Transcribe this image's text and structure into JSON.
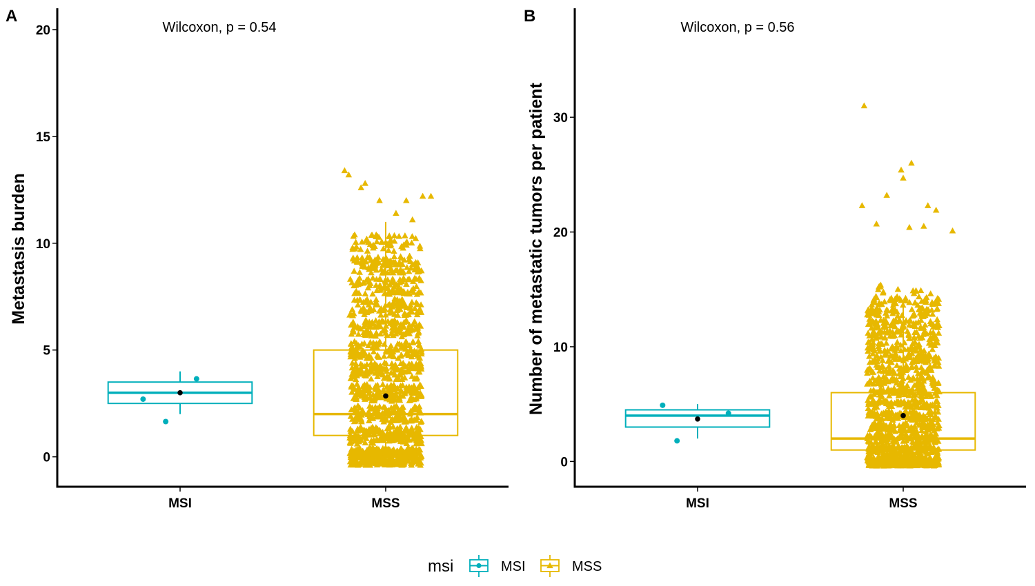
{
  "colors": {
    "MSI": "#00AFBB",
    "MSS": "#E7B800",
    "mean": "#000000",
    "axis": "#000000"
  },
  "legend": {
    "title": "msi",
    "items": [
      {
        "label": "MSI",
        "key": "MSI",
        "shape": "circle"
      },
      {
        "label": "MSS",
        "key": "MSS",
        "shape": "triangle"
      }
    ],
    "placement": "bottom"
  },
  "chart_data": [
    {
      "type": "box",
      "panel": "A",
      "title": "",
      "annotation": "Wilcoxon, p = 0.54",
      "xlabel": "",
      "ylabel": "Metastasis burden",
      "categories": [
        "MSI",
        "MSS"
      ],
      "ylim": [
        -1.4,
        21.0
      ],
      "yticks": [
        0,
        5,
        10,
        15,
        20
      ],
      "grid": false,
      "boxes": [
        {
          "group": "MSI",
          "q1": 2.5,
          "median": 3.0,
          "q3": 3.5,
          "whisker_low": 2.0,
          "whisker_high": 4.0,
          "mean": 3.0
        },
        {
          "group": "MSS",
          "q1": 1.0,
          "median": 2.0,
          "q3": 5.0,
          "whisker_low": 0.0,
          "whisker_high": 11.0,
          "mean": 2.85
        }
      ],
      "points": {
        "MSI": [
          [
            -0.18,
            2.7
          ],
          [
            0.08,
            3.65
          ],
          [
            -0.07,
            1.65
          ]
        ],
        "MSS": {
          "jitter": 0.35,
          "n": 1500,
          "y_min": -0.4,
          "y_max": 13.4,
          "notable": [
            [
              -0.2,
              13.4
            ],
            [
              -0.18,
              13.2
            ],
            [
              -0.12,
              12.6
            ],
            [
              -0.1,
              12.8
            ],
            [
              -0.03,
              12.0
            ],
            [
              0.1,
              12.0
            ],
            [
              0.18,
              12.2
            ],
            [
              0.22,
              12.2
            ],
            [
              0.13,
              11.1
            ],
            [
              0.05,
              11.4
            ]
          ]
        }
      }
    },
    {
      "type": "box",
      "panel": "B",
      "title": "",
      "annotation": "Wilcoxon, p = 0.56",
      "xlabel": "",
      "ylabel": "Number of metastatic tumors per patient",
      "categories": [
        "MSI",
        "MSS"
      ],
      "ylim": [
        -2.2,
        39.5
      ],
      "yticks": [
        0,
        10,
        20,
        30
      ],
      "grid": false,
      "boxes": [
        {
          "group": "MSI",
          "q1": 3.0,
          "median": 4.0,
          "q3": 4.5,
          "whisker_low": 2.0,
          "whisker_high": 5.0,
          "mean": 3.7
        },
        {
          "group": "MSS",
          "q1": 1.0,
          "median": 2.0,
          "q3": 6.0,
          "whisker_low": 0.0,
          "whisker_high": 14.0,
          "mean": 4.0
        }
      ],
      "points": {
        "MSI": [
          [
            -0.17,
            4.9
          ],
          [
            0.15,
            4.2
          ],
          [
            -0.1,
            1.8
          ]
        ],
        "MSS": {
          "jitter": 0.35,
          "n": 1500,
          "y_min": -0.4,
          "y_max": 31.0,
          "notable": [
            [
              -0.19,
              31.0
            ],
            [
              0.04,
              26.0
            ],
            [
              -0.01,
              25.4
            ],
            [
              0.0,
              24.7
            ],
            [
              -0.08,
              23.2
            ],
            [
              -0.2,
              22.3
            ],
            [
              0.12,
              22.3
            ],
            [
              0.16,
              21.9
            ],
            [
              -0.13,
              20.7
            ],
            [
              0.1,
              20.5
            ],
            [
              0.03,
              20.4
            ],
            [
              0.24,
              20.1
            ]
          ]
        }
      }
    }
  ]
}
